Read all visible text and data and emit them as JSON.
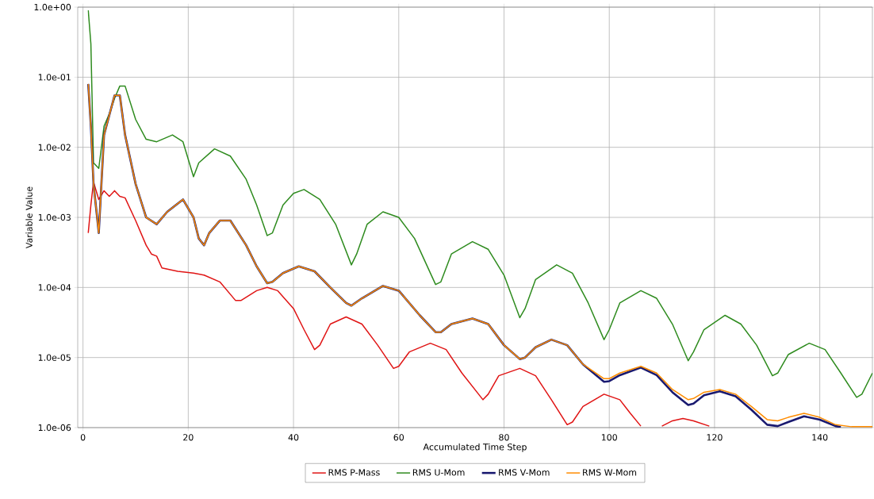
{
  "chart_data": {
    "type": "line",
    "xlabel": "Accumulated Time Step",
    "ylabel": "Variable Value",
    "log": "y",
    "grid": true,
    "legend": "bottom",
    "xlim": [
      -1,
      150
    ],
    "xticks": [
      0,
      20,
      40,
      60,
      80,
      100,
      120,
      140
    ],
    "ylim": [
      1e-06,
      1
    ],
    "yticks": [
      {
        "value": 1,
        "label": "1.0e+00"
      },
      {
        "value": 0.1,
        "label": "1.0e-01"
      },
      {
        "value": 0.01,
        "label": "1.0e-02"
      },
      {
        "value": 0.001,
        "label": "1.0e-03"
      },
      {
        "value": 0.0001,
        "label": "1.0e-04"
      },
      {
        "value": 1e-05,
        "label": "1.0e-05"
      },
      {
        "value": 1e-06,
        "label": "1.0e-06"
      }
    ],
    "series": [
      {
        "name": "RMS P-Mass",
        "color": "#e01414",
        "x": [
          1,
          1.5,
          2,
          3,
          4,
          5,
          6,
          7,
          8,
          10,
          12,
          13,
          14,
          15,
          18,
          21,
          23,
          26,
          29,
          30,
          33,
          35,
          37,
          40,
          42,
          44,
          45,
          47,
          50,
          53,
          56,
          59,
          60,
          62,
          66,
          69,
          72,
          76,
          77,
          79,
          83,
          86,
          89,
          92,
          93,
          95,
          99,
          102,
          104,
          106,
          108,
          110,
          112,
          114,
          116,
          119
        ],
        "values": [
          0.0006,
          0.0015,
          0.0032,
          0.0018,
          0.0024,
          0.002,
          0.0024,
          0.002,
          0.0019,
          0.0009,
          0.0004,
          0.0003,
          0.00028,
          0.00019,
          0.00017,
          0.00016,
          0.00015,
          0.00012,
          6.5e-05,
          6.5e-05,
          9e-05,
          0.0001,
          9e-05,
          5e-05,
          2.5e-05,
          1.3e-05,
          1.5e-05,
          3e-05,
          3.8e-05,
          3e-05,
          1.5e-05,
          7e-06,
          7.5e-06,
          1.2e-05,
          1.6e-05,
          1.3e-05,
          6e-06,
          2.5e-06,
          3e-06,
          5.5e-06,
          7e-06,
          5.5e-06,
          2.5e-06,
          1.1e-06,
          1.2e-06,
          2e-06,
          3e-06,
          2.5e-06,
          1.6e-06,
          1.05e-06,
          null,
          1.05e-06,
          1.25e-06,
          1.35e-06,
          1.25e-06,
          1.05e-06
        ]
      },
      {
        "name": "RMS U-Mom",
        "color": "#2e8b1e",
        "x": [
          1,
          1.5,
          2,
          3,
          4,
          5,
          6,
          7,
          8,
          10,
          12,
          14,
          17,
          19,
          21,
          22,
          25,
          28,
          31,
          33,
          35,
          36,
          38,
          40,
          42,
          45,
          48,
          51,
          52,
          54,
          57,
          60,
          63,
          67,
          68,
          70,
          74,
          77,
          80,
          83,
          84,
          86,
          90,
          93,
          96,
          99,
          100,
          102,
          106,
          109,
          112,
          115,
          116,
          118,
          122,
          125,
          128,
          131,
          132,
          134,
          138,
          141,
          144,
          147,
          148,
          150
        ],
        "values": [
          0.9,
          0.3,
          0.006,
          0.005,
          0.02,
          0.03,
          0.05,
          0.075,
          0.075,
          0.025,
          0.013,
          0.012,
          0.015,
          0.012,
          0.0038,
          0.006,
          0.0095,
          0.0075,
          0.0035,
          0.0015,
          0.00055,
          0.0006,
          0.0015,
          0.0022,
          0.0025,
          0.0018,
          0.0008,
          0.00021,
          0.0003,
          0.0008,
          0.0012,
          0.001,
          0.0005,
          0.00011,
          0.00012,
          0.0003,
          0.00045,
          0.00035,
          0.00015,
          3.7e-05,
          5e-05,
          0.00013,
          0.00021,
          0.00016,
          6e-05,
          1.8e-05,
          2.5e-05,
          6e-05,
          9e-05,
          7e-05,
          3e-05,
          9e-06,
          1.2e-05,
          2.5e-05,
          4e-05,
          3e-05,
          1.5e-05,
          5.5e-06,
          6e-06,
          1.1e-05,
          1.6e-05,
          1.3e-05,
          6e-06,
          2.7e-06,
          3e-06,
          6e-06
        ]
      },
      {
        "name": "RMS V-Mom",
        "color": "#1a1a70",
        "x": [
          1,
          1.5,
          2,
          3,
          3.5,
          4,
          6,
          7,
          8,
          10,
          12,
          14,
          16,
          19,
          21,
          22,
          23,
          24,
          26,
          28,
          31,
          33,
          35,
          36,
          38,
          41,
          44,
          47,
          50,
          51,
          53,
          57,
          60,
          64,
          67,
          68,
          70,
          74,
          77,
          80,
          83,
          84,
          86,
          89,
          92,
          95,
          99,
          100,
          102,
          106,
          109,
          112,
          115,
          116,
          118,
          121,
          124,
          127,
          130,
          132,
          134,
          137,
          140,
          143,
          144
        ],
        "values": [
          0.08,
          0.02,
          0.003,
          0.0006,
          0.003,
          0.015,
          0.055,
          0.055,
          0.015,
          0.003,
          0.001,
          0.0008,
          0.0012,
          0.0018,
          0.001,
          0.0005,
          0.0004,
          0.0006,
          0.0009,
          0.0009,
          0.0004,
          0.0002,
          0.000115,
          0.00012,
          0.00016,
          0.0002,
          0.00017,
          0.0001,
          6e-05,
          5.5e-05,
          7e-05,
          0.000105,
          9e-05,
          4e-05,
          2.3e-05,
          2.3e-05,
          3e-05,
          3.6e-05,
          3e-05,
          1.5e-05,
          9.5e-06,
          1e-05,
          1.4e-05,
          1.8e-05,
          1.5e-05,
          8e-06,
          4.5e-06,
          4.6e-06,
          5.6e-06,
          7.2e-06,
          5.6e-06,
          3.2e-06,
          2.1e-06,
          2.2e-06,
          2.9e-06,
          3.3e-06,
          2.8e-06,
          1.8e-06,
          1.1e-06,
          1.05e-06,
          1.2e-06,
          1.45e-06,
          1.3e-06,
          1.05e-06,
          1.02e-06
        ]
      },
      {
        "name": "RMS W-Mom",
        "color": "#ff8c00",
        "x": [
          1,
          1.5,
          2,
          3,
          3.5,
          4,
          6,
          7,
          8,
          10,
          12,
          14,
          16,
          19,
          21,
          22,
          23,
          24,
          26,
          28,
          31,
          33,
          35,
          36,
          38,
          41,
          44,
          47,
          50,
          51,
          53,
          57,
          60,
          64,
          67,
          68,
          70,
          74,
          77,
          80,
          83,
          84,
          86,
          89,
          92,
          95,
          99,
          100,
          102,
          106,
          109,
          112,
          115,
          116,
          118,
          121,
          124,
          127,
          130,
          132,
          134,
          137,
          140,
          143,
          146,
          150
        ],
        "values": [
          0.08,
          0.02,
          0.003,
          0.0006,
          0.003,
          0.015,
          0.055,
          0.055,
          0.015,
          0.003,
          0.001,
          0.0008,
          0.0012,
          0.0018,
          0.001,
          0.0005,
          0.0004,
          0.0006,
          0.0009,
          0.0009,
          0.0004,
          0.0002,
          0.000115,
          0.00012,
          0.00016,
          0.0002,
          0.00017,
          0.0001,
          6e-05,
          5.5e-05,
          7e-05,
          0.000105,
          9e-05,
          4e-05,
          2.3e-05,
          2.3e-05,
          3e-05,
          3.6e-05,
          3e-05,
          1.5e-05,
          9.5e-06,
          1e-05,
          1.4e-05,
          1.8e-05,
          1.5e-05,
          8e-06,
          5e-06,
          5e-06,
          6e-06,
          7.5e-06,
          6e-06,
          3.5e-06,
          2.5e-06,
          2.6e-06,
          3.2e-06,
          3.5e-06,
          3e-06,
          2e-06,
          1.3e-06,
          1.25e-06,
          1.4e-06,
          1.6e-06,
          1.4e-06,
          1.1e-06,
          1.03e-06,
          1.03e-06
        ]
      }
    ]
  }
}
